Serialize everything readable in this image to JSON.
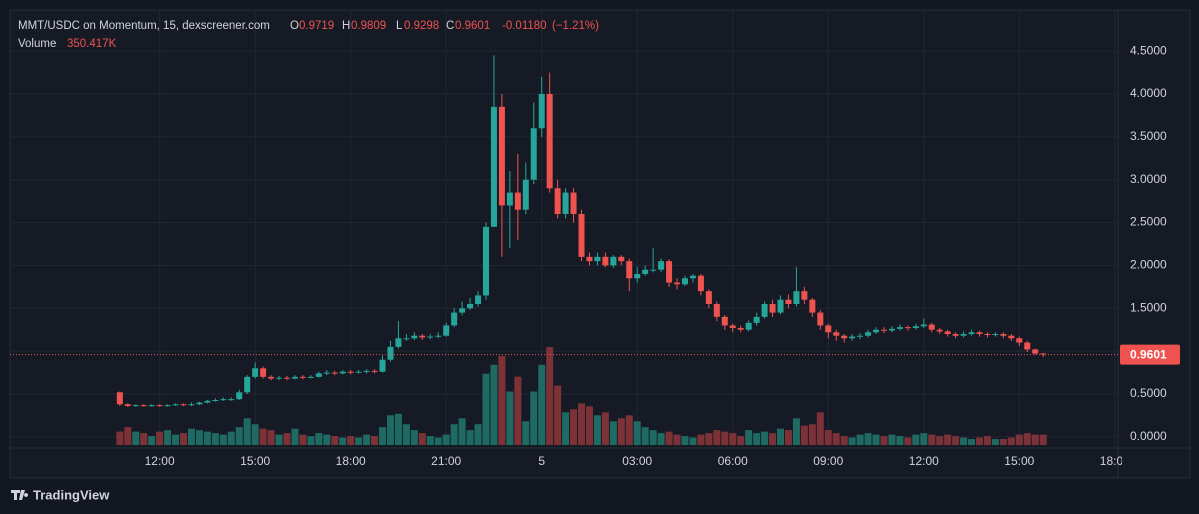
{
  "chart_data": {
    "type": "candlestick",
    "symbol": "MMT/USDC on Momentum, 15, dexscreener.com",
    "ohlc_letters": [
      "O",
      "H",
      "L",
      "C"
    ],
    "change": {
      "value": -0.0118,
      "label": "-0.01180"
    },
    "change_percent": {
      "value": -1.21,
      "label": "(−1.21%)"
    },
    "volume_title": "Volume",
    "volume_legend": "350.417K",
    "colors": {
      "up": "#26a69a",
      "down": "#ef5350",
      "volume_up": "#1f6a63",
      "volume_down": "#7d3237"
    },
    "grid": true,
    "x": [
      10.75,
      11,
      11.25,
      11.5,
      11.75,
      12,
      12.25,
      12.5,
      12.75,
      13,
      13.25,
      13.5,
      13.75,
      14,
      14.25,
      14.5,
      14.75,
      15,
      15.25,
      15.5,
      15.75,
      16,
      16.25,
      16.5,
      16.75,
      17,
      17.25,
      17.5,
      17.75,
      18,
      18.25,
      18.5,
      18.75,
      19,
      19.25,
      19.5,
      19.75,
      20,
      20.25,
      20.5,
      20.75,
      21,
      21.25,
      21.5,
      21.75,
      22,
      22.25,
      22.5,
      22.75,
      23,
      23.25,
      23.5,
      23.75,
      24,
      24.25,
      24.5,
      24.75,
      25,
      25.25,
      25.5,
      25.75,
      26,
      26.25,
      26.5,
      26.75,
      27,
      27.25,
      27.5,
      27.75,
      28,
      28.25,
      28.5,
      28.75,
      29,
      29.25,
      29.5,
      29.75,
      30,
      30.25,
      30.5,
      30.75,
      31,
      31.25,
      31.5,
      31.75,
      32,
      32.25,
      32.5,
      32.75,
      33,
      33.25,
      33.5,
      33.75,
      34,
      34.25,
      34.5,
      34.75,
      35,
      35.25,
      35.5,
      35.75,
      36,
      36.25,
      36.5,
      36.75,
      37,
      37.25,
      37.5,
      37.75,
      38,
      38.25,
      38.5,
      38.75,
      39,
      39.25,
      39.5,
      39.75
    ],
    "open": [
      0.52,
      0.38,
      0.36,
      0.37,
      0.36,
      0.37,
      0.36,
      0.37,
      0.38,
      0.37,
      0.38,
      0.4,
      0.42,
      0.43,
      0.44,
      0.44,
      0.52,
      0.7,
      0.8,
      0.7,
      0.68,
      0.69,
      0.68,
      0.7,
      0.69,
      0.7,
      0.74,
      0.75,
      0.74,
      0.76,
      0.75,
      0.76,
      0.77,
      0.76,
      0.9,
      1.05,
      1.15,
      1.15,
      1.18,
      1.16,
      1.17,
      1.18,
      1.3,
      1.45,
      1.5,
      1.55,
      1.65,
      2.45,
      3.85,
      2.7,
      2.85,
      2.65,
      3.0,
      3.6,
      4.0,
      2.9,
      2.6,
      2.85,
      2.6,
      2.1,
      2.05,
      2.1,
      2.0,
      2.1,
      2.05,
      1.85,
      1.9,
      1.95,
      1.95,
      2.05,
      1.8,
      1.78,
      1.85,
      1.88,
      1.7,
      1.55,
      1.4,
      1.3,
      1.27,
      1.25,
      1.33,
      1.4,
      1.55,
      1.45,
      1.6,
      1.55,
      1.7,
      1.6,
      1.45,
      1.3,
      1.22,
      1.18,
      1.15,
      1.17,
      1.18,
      1.22,
      1.25,
      1.24,
      1.26,
      1.28,
      1.27,
      1.29,
      1.31,
      1.25,
      1.23,
      1.2,
      1.18,
      1.2,
      1.22,
      1.2,
      1.19,
      1.2,
      1.18,
      1.15,
      1.1,
      1.02,
      0.9719
    ],
    "high": [
      0.53,
      0.39,
      0.38,
      0.38,
      0.38,
      0.38,
      0.38,
      0.39,
      0.39,
      0.4,
      0.41,
      0.43,
      0.45,
      0.46,
      0.46,
      0.55,
      0.72,
      0.87,
      0.82,
      0.72,
      0.71,
      0.71,
      0.72,
      0.72,
      0.72,
      0.76,
      0.78,
      0.77,
      0.78,
      0.78,
      0.78,
      0.79,
      0.79,
      0.95,
      1.12,
      1.35,
      1.2,
      1.22,
      1.2,
      1.2,
      1.22,
      1.33,
      1.5,
      1.58,
      1.62,
      1.7,
      2.5,
      4.45,
      4.0,
      3.1,
      3.3,
      3.2,
      3.9,
      4.2,
      4.25,
      3.0,
      2.9,
      2.9,
      2.65,
      2.15,
      2.15,
      2.15,
      2.12,
      2.12,
      2.08,
      1.98,
      2.0,
      2.2,
      2.08,
      2.07,
      1.85,
      1.88,
      1.9,
      1.9,
      1.72,
      1.58,
      1.42,
      1.32,
      1.3,
      1.36,
      1.45,
      1.58,
      1.6,
      1.65,
      1.66,
      1.98,
      1.75,
      1.62,
      1.48,
      1.32,
      1.25,
      1.2,
      1.2,
      1.21,
      1.25,
      1.28,
      1.28,
      1.29,
      1.31,
      1.3,
      1.32,
      1.38,
      1.33,
      1.27,
      1.25,
      1.22,
      1.23,
      1.25,
      1.24,
      1.22,
      1.22,
      1.22,
      1.2,
      1.17,
      1.12,
      1.03,
      0.9809
    ],
    "low": [
      0.36,
      0.35,
      0.35,
      0.35,
      0.35,
      0.35,
      0.35,
      0.36,
      0.36,
      0.36,
      0.37,
      0.39,
      0.41,
      0.42,
      0.42,
      0.43,
      0.5,
      0.68,
      0.68,
      0.66,
      0.66,
      0.66,
      0.67,
      0.67,
      0.68,
      0.69,
      0.72,
      0.72,
      0.73,
      0.73,
      0.74,
      0.74,
      0.74,
      0.75,
      0.88,
      1.03,
      1.12,
      1.13,
      1.13,
      1.14,
      1.15,
      1.17,
      1.28,
      1.42,
      1.48,
      1.52,
      1.6,
      2.45,
      2.1,
      2.2,
      2.3,
      2.6,
      2.95,
      3.5,
      2.85,
      2.55,
      2.55,
      2.5,
      2.05,
      2.0,
      2.0,
      1.98,
      1.97,
      2.0,
      1.7,
      1.8,
      1.88,
      1.92,
      1.92,
      1.75,
      1.72,
      1.76,
      1.8,
      1.65,
      1.5,
      1.35,
      1.25,
      1.22,
      1.22,
      1.23,
      1.3,
      1.38,
      1.4,
      1.43,
      1.5,
      1.52,
      1.55,
      1.4,
      1.25,
      1.15,
      1.12,
      1.1,
      1.12,
      1.14,
      1.16,
      1.2,
      1.21,
      1.22,
      1.24,
      1.24,
      1.25,
      1.27,
      1.22,
      1.2,
      1.17,
      1.15,
      1.16,
      1.18,
      1.17,
      1.16,
      1.17,
      1.15,
      1.12,
      1.06,
      0.99,
      0.96,
      0.9298
    ],
    "close": [
      0.38,
      0.36,
      0.37,
      0.36,
      0.37,
      0.36,
      0.37,
      0.38,
      0.37,
      0.38,
      0.4,
      0.42,
      0.43,
      0.44,
      0.44,
      0.52,
      0.7,
      0.8,
      0.7,
      0.68,
      0.69,
      0.68,
      0.7,
      0.69,
      0.7,
      0.74,
      0.75,
      0.74,
      0.76,
      0.75,
      0.76,
      0.77,
      0.76,
      0.9,
      1.05,
      1.15,
      1.15,
      1.18,
      1.16,
      1.17,
      1.18,
      1.3,
      1.45,
      1.5,
      1.55,
      1.65,
      2.45,
      3.85,
      2.7,
      2.85,
      2.65,
      3.0,
      3.6,
      4.0,
      2.9,
      2.6,
      2.85,
      2.6,
      2.1,
      2.05,
      2.1,
      2.0,
      2.1,
      2.05,
      1.85,
      1.9,
      1.95,
      1.95,
      2.05,
      1.8,
      1.78,
      1.85,
      1.88,
      1.7,
      1.55,
      1.4,
      1.3,
      1.27,
      1.25,
      1.33,
      1.4,
      1.55,
      1.45,
      1.6,
      1.55,
      1.7,
      1.6,
      1.45,
      1.3,
      1.22,
      1.18,
      1.15,
      1.17,
      1.18,
      1.22,
      1.25,
      1.24,
      1.26,
      1.28,
      1.27,
      1.29,
      1.31,
      1.25,
      1.23,
      1.2,
      1.18,
      1.2,
      1.22,
      1.2,
      1.19,
      1.2,
      1.18,
      1.15,
      1.1,
      1.02,
      0.9719,
      0.9601
    ],
    "volume": [
      450000,
      600000,
      450000,
      400000,
      300000,
      450000,
      500000,
      350000,
      400000,
      550000,
      500000,
      450000,
      400000,
      350000,
      450000,
      600000,
      900000,
      700000,
      550000,
      500000,
      350000,
      400000,
      550000,
      350000,
      300000,
      400000,
      350000,
      300000,
      250000,
      300000,
      250000,
      350000,
      300000,
      600000,
      1000000,
      1050000,
      700000,
      500000,
      400000,
      300000,
      250000,
      350000,
      700000,
      900000,
      500000,
      700000,
      2400000,
      2700000,
      3000000,
      1800000,
      2300000,
      800000,
      1800000,
      2700000,
      3300000,
      2000000,
      1100000,
      1200000,
      1400000,
      1300000,
      1000000,
      1100000,
      800000,
      900000,
      1000000,
      800000,
      600000,
      500000,
      400000,
      450000,
      350000,
      300000,
      250000,
      350000,
      400000,
      500000,
      450000,
      400000,
      300000,
      500000,
      400000,
      450000,
      400000,
      550000,
      500000,
      900000,
      650000,
      700000,
      1100000,
      500000,
      400000,
      300000,
      250000,
      350000,
      400000,
      350000,
      300000,
      350000,
      300000,
      250000,
      350000,
      400000,
      350000,
      300000,
      350000,
      300000,
      250000,
      200000,
      250000,
      300000,
      200000,
      200000,
      250000,
      350000,
      400000,
      350000,
      350417
    ],
    "xlim": [
      7.3,
      42.1
    ],
    "xticks": [
      {
        "value": 12,
        "label": "12:00"
      },
      {
        "value": 15,
        "label": "15:00"
      },
      {
        "value": 18,
        "label": "18:00"
      },
      {
        "value": 21,
        "label": "21:00"
      },
      {
        "value": 24,
        "label": "5"
      },
      {
        "value": 27,
        "label": "03:00"
      },
      {
        "value": 30,
        "label": "06:00"
      },
      {
        "value": 33,
        "label": "09:00"
      },
      {
        "value": 36,
        "label": "12:00"
      },
      {
        "value": 39,
        "label": "15:00"
      },
      {
        "value": 42,
        "label": "18:00"
      }
    ],
    "ylim": [
      -0.13,
      4.98
    ],
    "yticks": [
      {
        "value": 0,
        "label": "0.0000"
      },
      {
        "value": 0.5,
        "label": "0.5000"
      },
      {
        "value": 1,
        "label": "1.0000"
      },
      {
        "value": 1.5,
        "label": "1.5000"
      },
      {
        "value": 2,
        "label": "2.0000"
      },
      {
        "value": 2.5,
        "label": "2.5000"
      },
      {
        "value": 3,
        "label": "3.0000"
      },
      {
        "value": 3.5,
        "label": "3.5000"
      },
      {
        "value": 4,
        "label": "4.0000"
      },
      {
        "value": 4.5,
        "label": "4.5000"
      }
    ],
    "footer": {
      "brand": "TradingView"
    }
  }
}
